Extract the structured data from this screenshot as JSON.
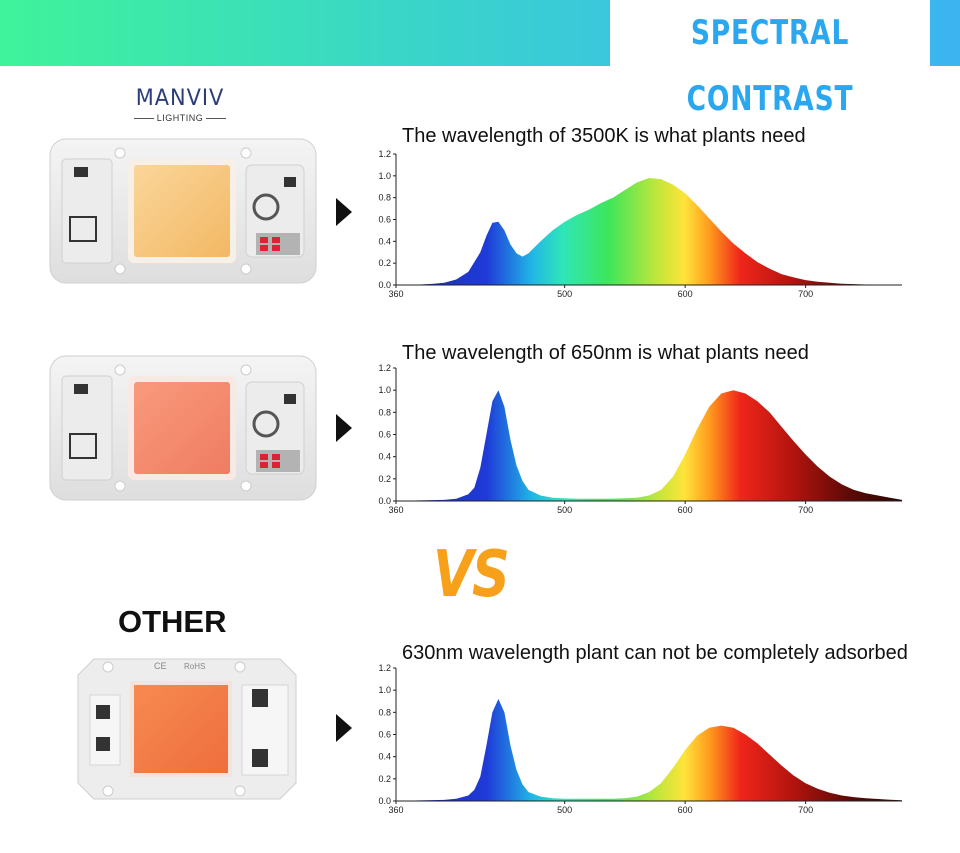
{
  "header": {
    "title": "SPECTRAL CONTRAST"
  },
  "logo": {
    "word": "MANVIV",
    "sub": "LIGHTING"
  },
  "vs_label": "VS",
  "other_label": "OTHER",
  "colors": {
    "banner_start": "#3ff39a",
    "banner_end": "#3bb4f0",
    "title": "#2aa7ee",
    "vs": "#f7a11a"
  },
  "chart_data": [
    {
      "type": "area",
      "title": "The wavelength of 3500K is what plants need",
      "xlim": [
        360,
        780
      ],
      "ylim": [
        0,
        1.2
      ],
      "xticks": [
        "360",
        "500",
        "600",
        "700"
      ],
      "yticks": [
        "0.0",
        "0.2",
        "0.4",
        "0.6",
        "0.8",
        "1.0",
        "1.2"
      ],
      "x": [
        360,
        370,
        380,
        390,
        400,
        410,
        420,
        430,
        435,
        440,
        445,
        450,
        455,
        460,
        465,
        470,
        480,
        490,
        500,
        510,
        520,
        530,
        540,
        550,
        560,
        570,
        580,
        590,
        600,
        610,
        620,
        630,
        640,
        650,
        660,
        670,
        680,
        690,
        700,
        710,
        720,
        730,
        740,
        750,
        760,
        770,
        780
      ],
      "values": [
        0,
        0,
        0.005,
        0.01,
        0.02,
        0.05,
        0.12,
        0.3,
        0.45,
        0.57,
        0.58,
        0.5,
        0.37,
        0.29,
        0.26,
        0.29,
        0.4,
        0.5,
        0.58,
        0.64,
        0.69,
        0.75,
        0.8,
        0.87,
        0.94,
        0.98,
        0.97,
        0.92,
        0.84,
        0.73,
        0.61,
        0.49,
        0.38,
        0.29,
        0.21,
        0.15,
        0.1,
        0.07,
        0.045,
        0.03,
        0.02,
        0.012,
        0.008,
        0.005,
        0.003,
        0.002,
        0.001
      ]
    },
    {
      "type": "area",
      "title": "The wavelength of 650nm is what plants need",
      "xlim": [
        360,
        780
      ],
      "ylim": [
        0,
        1.2
      ],
      "xticks": [
        "360",
        "500",
        "600",
        "700"
      ],
      "yticks": [
        "0.0",
        "0.2",
        "0.4",
        "0.6",
        "0.8",
        "1.0",
        "1.2"
      ],
      "x": [
        360,
        380,
        400,
        410,
        420,
        425,
        430,
        435,
        440,
        445,
        450,
        455,
        460,
        465,
        470,
        480,
        490,
        500,
        510,
        520,
        530,
        540,
        550,
        560,
        570,
        580,
        590,
        600,
        610,
        620,
        630,
        640,
        650,
        660,
        670,
        680,
        690,
        700,
        710,
        720,
        730,
        740,
        750,
        760,
        770,
        780
      ],
      "values": [
        0,
        0.005,
        0.01,
        0.02,
        0.06,
        0.12,
        0.3,
        0.6,
        0.9,
        1.0,
        0.85,
        0.55,
        0.32,
        0.18,
        0.1,
        0.05,
        0.03,
        0.025,
        0.02,
        0.02,
        0.02,
        0.02,
        0.025,
        0.03,
        0.05,
        0.1,
        0.22,
        0.42,
        0.65,
        0.85,
        0.97,
        1.0,
        0.97,
        0.9,
        0.8,
        0.67,
        0.54,
        0.42,
        0.31,
        0.22,
        0.15,
        0.1,
        0.07,
        0.05,
        0.03,
        0.01
      ]
    },
    {
      "type": "area",
      "title": "630nm wavelength plant can not be completely adsorbed",
      "xlim": [
        360,
        780
      ],
      "ylim": [
        0,
        1.2
      ],
      "xticks": [
        "360",
        "500",
        "600",
        "700"
      ],
      "yticks": [
        "0.0",
        "0.2",
        "0.4",
        "0.6",
        "0.8",
        "1.0",
        "1.2"
      ],
      "x": [
        360,
        380,
        400,
        410,
        420,
        425,
        430,
        435,
        440,
        445,
        450,
        455,
        460,
        465,
        470,
        480,
        490,
        500,
        510,
        520,
        530,
        540,
        550,
        560,
        570,
        580,
        590,
        600,
        610,
        620,
        630,
        640,
        650,
        660,
        670,
        680,
        690,
        700,
        710,
        720,
        730,
        740,
        750,
        760,
        770,
        780
      ],
      "values": [
        0,
        0.005,
        0.01,
        0.02,
        0.05,
        0.1,
        0.22,
        0.5,
        0.8,
        0.92,
        0.8,
        0.5,
        0.28,
        0.15,
        0.08,
        0.04,
        0.025,
        0.02,
        0.02,
        0.02,
        0.02,
        0.02,
        0.025,
        0.04,
        0.08,
        0.16,
        0.3,
        0.46,
        0.59,
        0.66,
        0.68,
        0.66,
        0.6,
        0.52,
        0.42,
        0.32,
        0.23,
        0.16,
        0.11,
        0.075,
        0.05,
        0.035,
        0.025,
        0.018,
        0.012,
        0.006
      ]
    }
  ]
}
